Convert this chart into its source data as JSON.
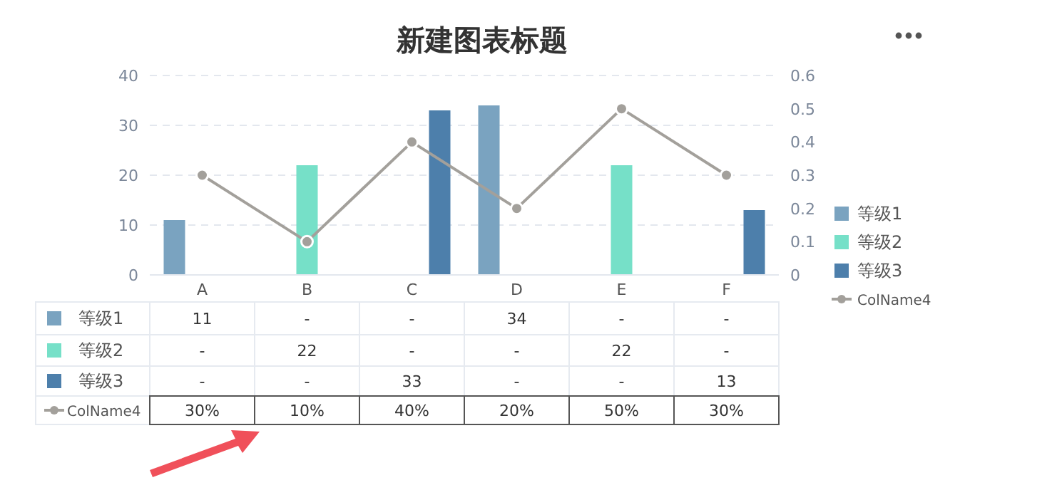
{
  "chart_data": {
    "type": "bar",
    "title": "新建图表标题",
    "categories": [
      "A",
      "B",
      "C",
      "D",
      "E",
      "F"
    ],
    "series": [
      {
        "name": "等级1",
        "color": "#7aa3c0",
        "values": [
          11,
          null,
          null,
          34,
          null,
          null
        ],
        "value_labels": [
          "11",
          "-",
          "-",
          "34",
          "-",
          "-"
        ]
      },
      {
        "name": "等级2",
        "color": "#76e0c8",
        "values": [
          null,
          22,
          null,
          null,
          22,
          null
        ],
        "value_labels": [
          "-",
          "22",
          "-",
          "-",
          "22",
          "-"
        ]
      },
      {
        "name": "等级3",
        "color": "#4d7fab",
        "values": [
          null,
          null,
          33,
          null,
          null,
          13
        ],
        "value_labels": [
          "-",
          "-",
          "33",
          "-",
          "-",
          "13"
        ]
      },
      {
        "name": "ColName4",
        "type": "line",
        "axis": "y2",
        "color": "#a3a09b",
        "marker": "circle",
        "values": [
          0.3,
          0.1,
          0.4,
          0.2,
          0.5,
          0.3
        ],
        "value_labels": [
          "30%",
          "10%",
          "40%",
          "20%",
          "50%",
          "30%"
        ]
      }
    ],
    "ylim": [
      0,
      40
    ],
    "yticks": [
      0,
      10,
      20,
      30,
      40
    ],
    "y2lim": [
      0,
      0.6
    ],
    "y2ticks": [
      0,
      0.1,
      0.2,
      0.3,
      0.4,
      0.5,
      0.6
    ],
    "grid": "y",
    "legend": "right"
  }
}
